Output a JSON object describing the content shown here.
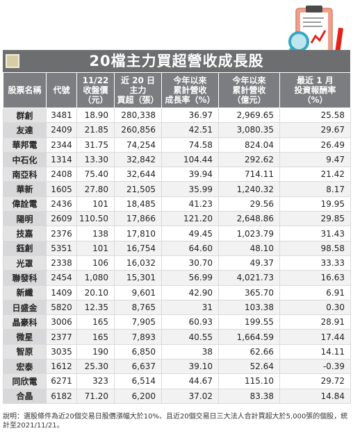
{
  "title": "20檔主力買超營收成長股",
  "headers": [
    "股票名稱",
    "代號",
    "11/22\n收盤價\n（元）",
    "近 20 日\n主力\n買超（張）",
    "今年以來\n累計營收\n成長率（%）",
    "今年以來\n累計營收\n（億元）",
    "最近 1 月\n投資報酬率\n（%）"
  ],
  "rows": [
    [
      "群創",
      "3481",
      "18.90",
      "280,338",
      "36.97",
      "2,969.65",
      "25.58"
    ],
    [
      "友達",
      "2409",
      "21.85",
      "260,856",
      "42.51",
      "3,080.35",
      "29.67"
    ],
    [
      "華邦電",
      "2344",
      "31.75",
      "74,254",
      "74.58",
      "824.04",
      "26.49"
    ],
    [
      "中石化",
      "1314",
      "13.30",
      "32,842",
      "104.44",
      "292.62",
      "9.47"
    ],
    [
      "南亞科",
      "2408",
      "75.40",
      "32,644",
      "39.94",
      "714.11",
      "21.42"
    ],
    [
      "華新",
      "1605",
      "27.80",
      "21,505",
      "35.99",
      "1,240.32",
      "8.17"
    ],
    [
      "偉詮電",
      "2436",
      "101",
      "18,485",
      "41.23",
      "29.56",
      "19.95"
    ],
    [
      "陽明",
      "2609",
      "110.50",
      "17,866",
      "121.20",
      "2,648.86",
      "29.85"
    ],
    [
      "技嘉",
      "2376",
      "138",
      "17,810",
      "49.45",
      "1,023.79",
      "31.43"
    ],
    [
      "鈺創",
      "5351",
      "101",
      "16,754",
      "64.60",
      "48.10",
      "98.58"
    ],
    [
      "光罩",
      "2338",
      "106",
      "16,032",
      "30.70",
      "49.37",
      "33.33"
    ],
    [
      "聯發科",
      "2454",
      "1,080",
      "15,301",
      "56.99",
      "4,021.73",
      "16.63"
    ],
    [
      "新纖",
      "1409",
      "20.10",
      "9,601",
      "42.90",
      "365.70",
      "6.91"
    ],
    [
      "日盛金",
      "5820",
      "12.35",
      "8,765",
      "31",
      "103.38",
      "0.30"
    ],
    [
      "晶豪科",
      "3006",
      "165",
      "7,905",
      "60.93",
      "199.55",
      "28.91"
    ],
    [
      "微星",
      "2377",
      "165",
      "7,893",
      "40.55",
      "1,664.59",
      "17.44"
    ],
    [
      "智原",
      "3035",
      "190",
      "6,850",
      "38",
      "62.66",
      "14.11"
    ],
    [
      "宏泰",
      "1612",
      "25.30",
      "6,637",
      "39.10",
      "52.64",
      "-0.39"
    ],
    [
      "同欣電",
      "6271",
      "323",
      "6,514",
      "44.67",
      "115.10",
      "29.72"
    ],
    [
      "合晶",
      "6182",
      "71.20",
      "6,200",
      "37.02",
      "83.38",
      "14.84"
    ]
  ],
  "footnote": "說明：選股條件為近20個交易日股價漲幅大於10%、且近20個交易日三大法人合計買超大於5,000張的個股，統計至2021/11/21。",
  "colors": {
    "banner": "#6d6e70",
    "header_bg": "#7c7d80",
    "name_col": "#e3e3e4",
    "clipboard": "#f0a08a",
    "magnifier": "#36a7c4",
    "trend_line": "#e2231a"
  },
  "icons": [
    "clipboard-icon",
    "magnifier-icon",
    "pencil-icon",
    "trend-chart-icon"
  ]
}
